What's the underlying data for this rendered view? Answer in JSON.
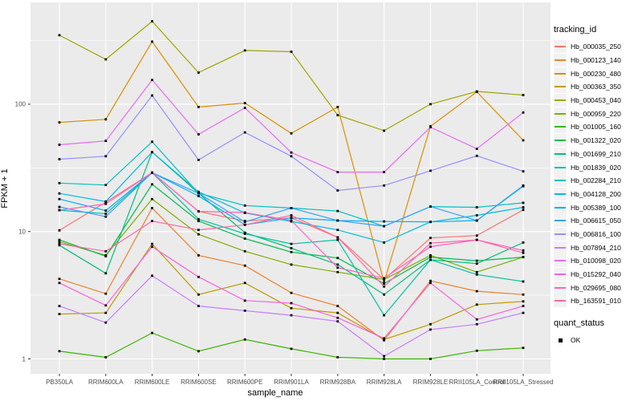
{
  "figure": {
    "panel_background": "#EBEBEB",
    "grid_color": "#FFFFFF",
    "axis_text_color": "#4D4D4D",
    "tick_color": "#333333",
    "point_color": "#000000",
    "legend_key_background": "#F2F2F2"
  },
  "chart_data": {
    "type": "line",
    "title": "",
    "xlabel": "sample_name",
    "ylabel": "FPKM + 1",
    "y_scale": "log10",
    "y_ticks": [
      1,
      10,
      100
    ],
    "y_tick_labels": [
      "1",
      "10",
      "100"
    ],
    "y_minor_gridlines": [
      3.162,
      31.62,
      316.2
    ],
    "ylim": [
      0.75,
      630
    ],
    "grid": "on",
    "legend_position": "right",
    "point_marker": "square",
    "categories": [
      "PB350LA",
      "RRIM600LA",
      "RRIM600LE",
      "RRIM600SE",
      "RRIM600PE",
      "RRIM901LA",
      "RRIM928BA",
      "RRIM928LA",
      "RRIM928LE",
      "RRII105LA_Control",
      "RRII105LA_Stressed"
    ],
    "series": [
      {
        "name": "Hb_000035_250",
        "color": "#F8766D",
        "values": [
          10.2,
          17,
          29,
          14.4,
          12.1,
          12.8,
          9.0,
          4.2,
          8.9,
          9.3,
          14.8
        ]
      },
      {
        "name": "Hb_000123_140",
        "color": "#EA8331",
        "values": [
          4.25,
          3.25,
          15.3,
          6.5,
          5.4,
          3.3,
          2.6,
          1.4,
          4.1,
          3.4,
          3.2
        ]
      },
      {
        "name": "Hb_000230_480",
        "color": "#D89000",
        "values": [
          72,
          76,
          310,
          95,
          102,
          59,
          95,
          4.0,
          67,
          125,
          52
        ]
      },
      {
        "name": "Hb_000363_350",
        "color": "#C09B00",
        "values": [
          2.25,
          2.3,
          8.0,
          3.2,
          3.95,
          2.5,
          2.3,
          1.42,
          1.87,
          2.67,
          2.83
        ]
      },
      {
        "name": "Hb_000453_040",
        "color": "#A3A500",
        "values": [
          348,
          225,
          447,
          177,
          264,
          258,
          82,
          62,
          100,
          126,
          118
        ]
      },
      {
        "name": "Hb_000959_220",
        "color": "#7CAE00",
        "values": [
          8.3,
          6.5,
          18,
          9.5,
          7.0,
          5.5,
          4.8,
          4.2,
          6.5,
          4.8,
          6.3
        ]
      },
      {
        "name": "Hb_001005_160",
        "color": "#39B600",
        "values": [
          1.15,
          1.03,
          1.6,
          1.15,
          1.42,
          1.2,
          1.03,
          1.0,
          1.0,
          1.16,
          1.22
        ]
      },
      {
        "name": "Hb_001322_020",
        "color": "#00BB4E",
        "values": [
          8.6,
          6.4,
          23.5,
          12.1,
          8.8,
          6.9,
          6.2,
          3.9,
          6.3,
          5.9,
          6.3
        ]
      },
      {
        "name": "Hb_001699_210",
        "color": "#00BF7D",
        "values": [
          7.8,
          4.7,
          42,
          20,
          9.8,
          7.4,
          5.5,
          3.2,
          6.0,
          5.6,
          8.2
        ]
      },
      {
        "name": "Hb_001839_020",
        "color": "#00C1A3",
        "values": [
          14.7,
          13.8,
          29,
          12.5,
          9.6,
          8.0,
          8.6,
          2.2,
          6.0,
          4.6,
          4.05
        ]
      },
      {
        "name": "Hb_002284_210",
        "color": "#00BFC4",
        "values": [
          24,
          23.2,
          50.7,
          20,
          16,
          15.3,
          14.5,
          11,
          15.7,
          15.5,
          16.8
        ]
      },
      {
        "name": "Hb_004128_200",
        "color": "#00BAE0",
        "values": [
          19.9,
          17.2,
          42,
          20.5,
          14,
          12,
          10.3,
          8.2,
          11.9,
          13.4,
          15.5
        ]
      },
      {
        "name": "Hb_005389_100",
        "color": "#00B0F6",
        "values": [
          18,
          14.6,
          29,
          19,
          11.3,
          12.8,
          12.2,
          12,
          11.9,
          12.2,
          22.7
        ]
      },
      {
        "name": "Hb_006615_050",
        "color": "#35A2FF",
        "values": [
          15.6,
          13.1,
          29,
          20,
          11.9,
          15.3,
          12.2,
          11,
          15.7,
          12.2,
          23
        ]
      },
      {
        "name": "Hb_006816_100",
        "color": "#9590FF",
        "values": [
          37,
          39,
          117,
          36.5,
          60,
          39,
          21,
          23,
          30,
          39.3,
          29.7
        ]
      },
      {
        "name": "Hb_007894_210",
        "color": "#C77CFF",
        "values": [
          2.6,
          1.93,
          4.5,
          2.6,
          2.39,
          2.2,
          1.97,
          1.05,
          1.7,
          1.87,
          2.3
        ]
      },
      {
        "name": "Hb_010098_020",
        "color": "#E76BF3",
        "values": [
          48,
          51.5,
          155,
          58,
          93.5,
          41.7,
          29.3,
          29.3,
          66,
          44.6,
          86
        ]
      },
      {
        "name": "Hb_015292_040",
        "color": "#FA62DB",
        "values": [
          3.95,
          2.63,
          7.6,
          4.4,
          2.87,
          2.74,
          2.1,
          1.45,
          3.95,
          2.04,
          2.6
        ]
      },
      {
        "name": "Hb_029695_080",
        "color": "#FF61C3",
        "values": [
          14.7,
          16.5,
          29,
          14.4,
          14.1,
          12.2,
          5.2,
          4.3,
          7.6,
          8.6,
          7.1
        ]
      },
      {
        "name": "Hb_163591_010",
        "color": "#FF67A4",
        "values": [
          8.0,
          7.0,
          12.1,
          10.3,
          11.3,
          13.4,
          9.0,
          3.7,
          8.1,
          8.6,
          6.8
        ]
      }
    ],
    "legend": {
      "color_title": "tracking_id",
      "shape_title": "quant_status",
      "shape_items": [
        {
          "label": "OK",
          "marker": "square"
        }
      ]
    }
  }
}
